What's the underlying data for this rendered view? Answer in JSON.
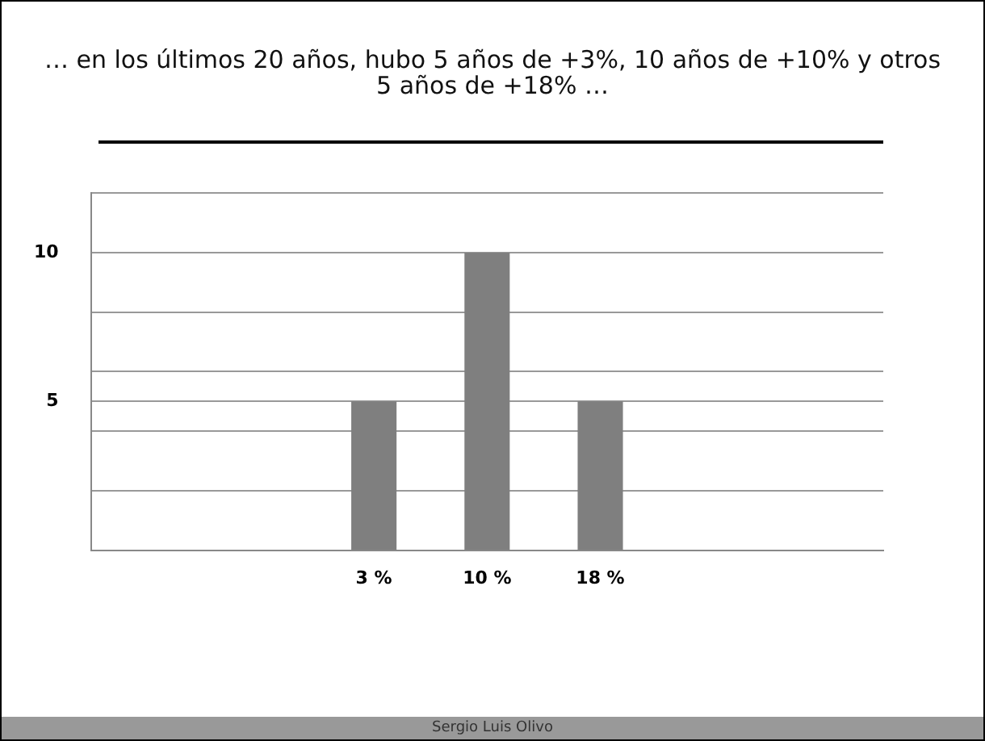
{
  "chart_data": {
    "type": "bar",
    "title": "… en los últimos 20 años, hubo 5 años de +3%, 10 años de +10% y otros  5 años de +18% …",
    "categories": [
      null,
      null,
      "3 %",
      "10 %",
      "18 %",
      null,
      null
    ],
    "values": [
      null,
      null,
      5,
      10,
      5,
      null,
      null
    ],
    "color": "#7f7f7f",
    "ylim": [
      0,
      12
    ],
    "yticks": [
      {
        "value": 2,
        "label": null
      },
      {
        "value": 4,
        "label": null
      },
      5,
      {
        "value": 6,
        "label": null
      },
      {
        "value": 8,
        "label": null
      },
      10,
      {
        "value": 12,
        "label": null
      }
    ],
    "grid": "y",
    "legend": false,
    "annotations": [
      "Sergio Luis Olivo"
    ]
  }
}
